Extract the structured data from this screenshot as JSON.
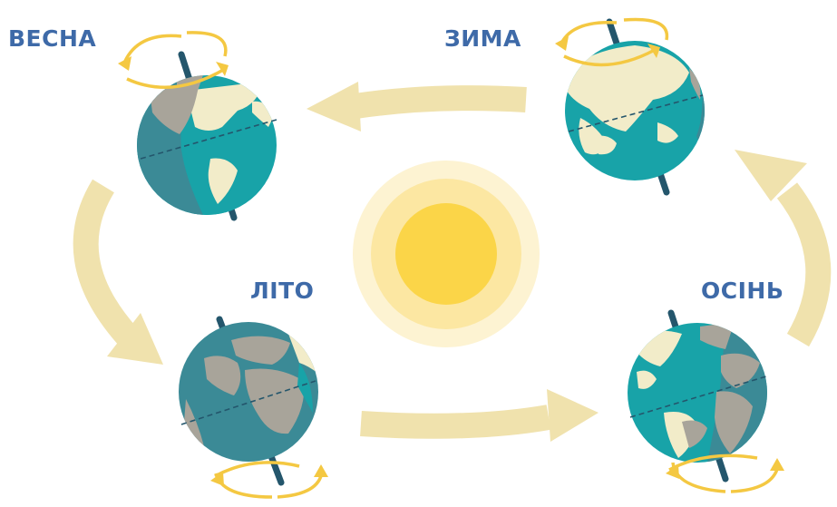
{
  "seasons": {
    "spring": "ВЕСНА",
    "winter": "ЗИМА",
    "summer": "ЛІТО",
    "autumn": "ОСІНЬ"
  },
  "colors": {
    "label": "#3e6aa8",
    "arrow": "#f0e2ad",
    "orbit_ring": "#f4c842",
    "axis": "#24566c",
    "ocean_lit": "#18a3a8",
    "ocean_dark": "#3b8a96",
    "land_lit": "#f2ecc9",
    "land_dark": "#a8a49a",
    "sun_core": "#fbd548",
    "sun_glow_1": "#fce7a2",
    "sun_glow_2": "#fdf3d2"
  }
}
